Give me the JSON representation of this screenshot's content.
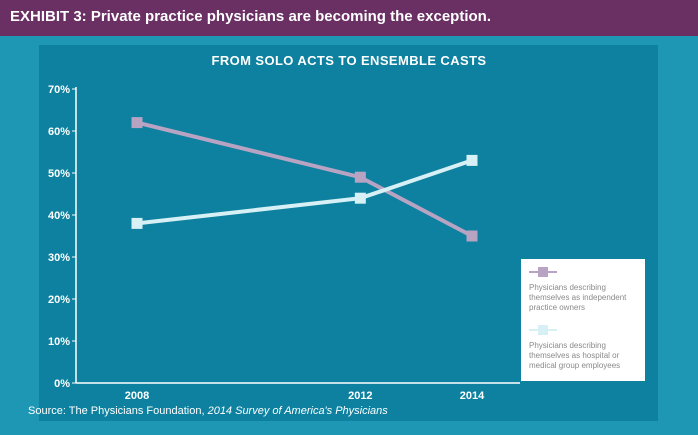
{
  "header": {
    "title": "EXHIBIT 3: Private practice physicians are becoming the exception."
  },
  "source": {
    "prefix": "Source: The Physicians Foundation, ",
    "italic": "2014 Survey of America's Physicians"
  },
  "colors": {
    "frame": "#1e97b5",
    "header": "#6a2f63",
    "panel": "#0d819f",
    "owners": "#b9a3c3",
    "employees": "#d6f0f5"
  },
  "chart_data": {
    "type": "line",
    "title": "FROM SOLO ACTS TO ENSEMBLE CASTS",
    "xlabel": "",
    "ylabel": "",
    "x": [
      2008,
      2012,
      2014
    ],
    "x_tick_labels": [
      "2008",
      "2012",
      "2014"
    ],
    "ylim": [
      0,
      70
    ],
    "y_ticks": [
      0,
      10,
      20,
      30,
      40,
      50,
      60,
      70
    ],
    "y_tick_labels": [
      "0%",
      "10%",
      "20%",
      "30%",
      "40%",
      "50%",
      "60%",
      "70%"
    ],
    "grid": false,
    "legend_position": "bottom-right",
    "series": [
      {
        "name": "Physicians describing themselves as independent practice owners",
        "values": [
          62,
          49,
          35
        ],
        "color": "#b9a3c3"
      },
      {
        "name": "Physicians describing themselves as hospital or medical group employees",
        "values": [
          38,
          44,
          53
        ],
        "color": "#d6f0f5"
      }
    ]
  }
}
